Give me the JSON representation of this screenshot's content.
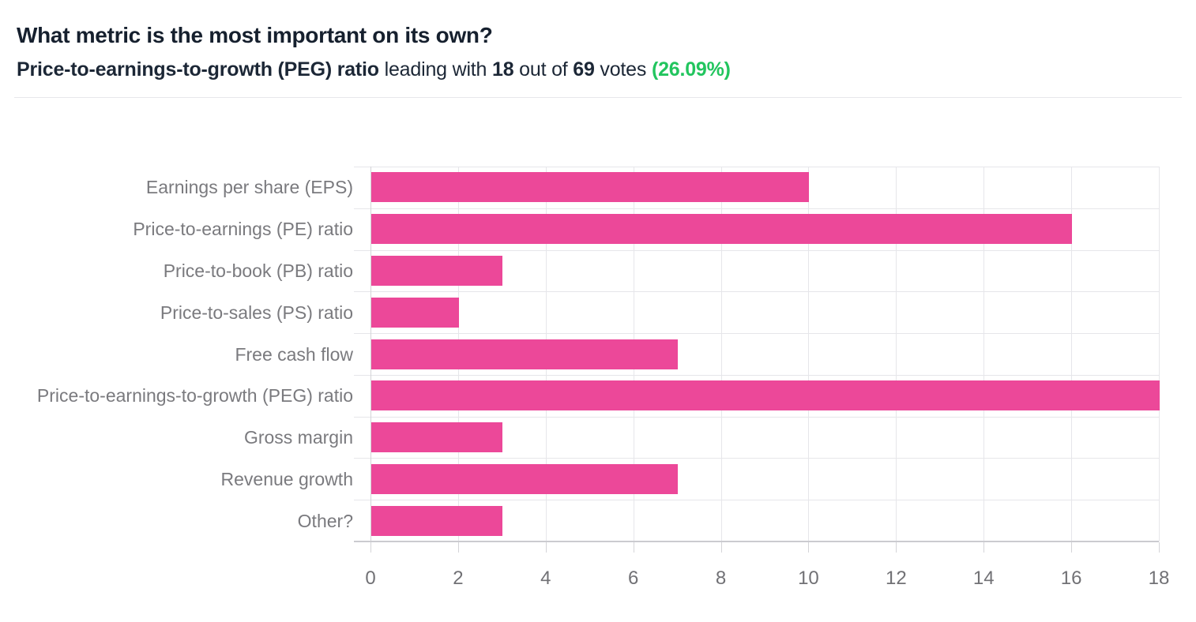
{
  "header": {
    "title": "What metric is the most important on its own?",
    "subtitle": {
      "leader_label": "Price-to-earnings-to-growth (PEG) ratio",
      "mid1": " leading with ",
      "leading_votes": "18",
      "mid2": " out of ",
      "total_votes": "69",
      "mid3": " votes ",
      "percent": "(26.09%)"
    }
  },
  "colors": {
    "bar": "#ec4899",
    "accent_green": "#22c55e",
    "grid": "#e6e6ea",
    "axis": "#cbcbd0",
    "label_gray": "#7a7a7e",
    "title_dark": "#16202e"
  },
  "chart_data": {
    "type": "bar",
    "orientation": "horizontal",
    "title": "What metric is the most important on its own?",
    "categories": [
      "Earnings per share (EPS)",
      "Price-to-earnings (PE) ratio",
      "Price-to-book (PB) ratio",
      "Price-to-sales (PS) ratio",
      "Free cash flow",
      "Price-to-earnings-to-growth (PEG) ratio",
      "Gross margin",
      "Revenue growth",
      "Other?"
    ],
    "values": [
      10,
      16,
      3,
      2,
      7,
      18,
      3,
      7,
      3
    ],
    "total_votes": 69,
    "leading_value": 18,
    "leading_percent": 26.09,
    "xlabel": "",
    "ylabel": "",
    "xlim": [
      0,
      18
    ],
    "xticks": [
      0,
      2,
      4,
      6,
      8,
      10,
      12,
      14,
      16,
      18
    ],
    "grid": true,
    "legend": false
  }
}
